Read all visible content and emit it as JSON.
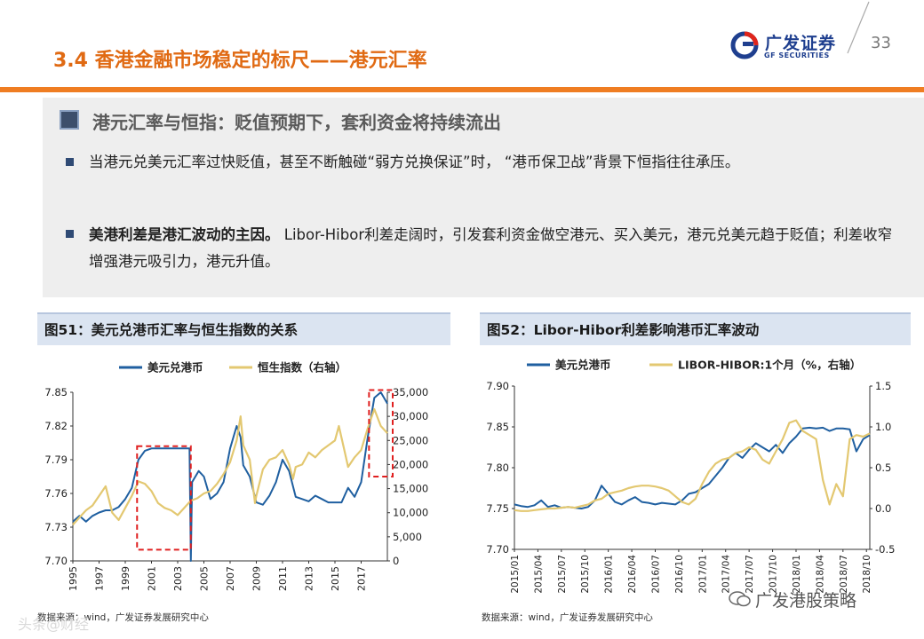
{
  "header": {
    "title": "3.4 香港金融市场稳定的标尺——港元汇率",
    "logo_main": "广发证券",
    "logo_sub": "GF SECURITIES",
    "page_number": "33"
  },
  "colors": {
    "accent_orange": "#ef7d22",
    "navy": "#1f5fa0",
    "gold": "#e3c871",
    "red_dash": "#e02020"
  },
  "section": {
    "subtitle": "港元汇率与恒指：贬值预期下，套利资金将持续流出",
    "bullets": [
      {
        "lead": "",
        "text": "当港元兑美元汇率过快贬值，甚至不断触碰“弱方兑换保证”时， “港币保卫战”背景下恒指往往承压。"
      },
      {
        "lead": "美港利差是港汇波动的主因。",
        "text": " Libor-Hibor利差走阔时，引发套利资金做空港元、买入美元，港元兑美元趋于贬值；利差收窄增强港元吸引力，港元升值。"
      }
    ]
  },
  "figures": {
    "fig51": {
      "title": "图51：美元兑港币汇率与恒生指数的关系",
      "source": "数据来源：wind，广发证券发展研究中心"
    },
    "fig52": {
      "title": "图52：Libor-Hibor利差影响港币汇率波动",
      "source": "数据来源：wind，广发证券发展研究中心"
    }
  },
  "watermark": "广发港股策略",
  "watermark2": "头条@财经",
  "chart_data": [
    {
      "type": "line",
      "title": "图51：美元兑港币汇率与恒生指数的关系",
      "x": [
        "1995",
        "1997",
        "1999",
        "2001",
        "2003",
        "2005",
        "2007",
        "2009",
        "2011",
        "2013",
        "2015",
        "2017"
      ],
      "xlim": [
        1995,
        2019
      ],
      "ylim": [
        7.7,
        7.85
      ],
      "yticks": [
        7.7,
        7.73,
        7.76,
        7.79,
        7.82,
        7.85
      ],
      "y2lim": [
        0,
        35000
      ],
      "y2ticks": [
        0,
        5000,
        10000,
        15000,
        20000,
        25000,
        30000,
        35000
      ],
      "ytick_labels": [
        "7.70",
        "7.73",
        "7.76",
        "7.79",
        "7.82",
        "7.85"
      ],
      "y2tick_labels": [
        "0",
        "5,000",
        "10,000",
        "15,000",
        "20,000",
        "25,000",
        "30,000",
        "35,000"
      ],
      "series": [
        {
          "name": "美元兑港币",
          "axis": "left",
          "color": "#1f5fa0",
          "points": [
            [
              1995,
              7.735
            ],
            [
              1995.5,
              7.74
            ],
            [
              1996,
              7.735
            ],
            [
              1996.5,
              7.74
            ],
            [
              1997,
              7.743
            ],
            [
              1997.5,
              7.745
            ],
            [
              1998,
              7.745
            ],
            [
              1998.5,
              7.748
            ],
            [
              1999,
              7.755
            ],
            [
              1999.5,
              7.765
            ],
            [
              2000,
              7.79
            ],
            [
              2000.5,
              7.798
            ],
            [
              2001,
              7.8
            ],
            [
              2002,
              7.8
            ],
            [
              2003,
              7.8
            ],
            [
              2003.9,
              7.8
            ],
            [
              2004,
              7.7
            ],
            [
              2004.1,
              7.77
            ],
            [
              2004.6,
              7.78
            ],
            [
              2005,
              7.775
            ],
            [
              2005.5,
              7.755
            ],
            [
              2006,
              7.76
            ],
            [
              2006.5,
              7.77
            ],
            [
              2007,
              7.8
            ],
            [
              2007.5,
              7.82
            ],
            [
              2007.8,
              7.81
            ],
            [
              2008,
              7.785
            ],
            [
              2008.5,
              7.775
            ],
            [
              2009,
              7.752
            ],
            [
              2009.5,
              7.75
            ],
            [
              2010,
              7.758
            ],
            [
              2010.5,
              7.77
            ],
            [
              2011,
              7.79
            ],
            [
              2011.5,
              7.78
            ],
            [
              2012,
              7.757
            ],
            [
              2012.5,
              7.755
            ],
            [
              2013,
              7.753
            ],
            [
              2013.5,
              7.758
            ],
            [
              2014,
              7.755
            ],
            [
              2014.5,
              7.752
            ],
            [
              2015,
              7.752
            ],
            [
              2015.5,
              7.752
            ],
            [
              2016,
              7.765
            ],
            [
              2016.5,
              7.757
            ],
            [
              2017,
              7.77
            ],
            [
              2017.5,
              7.81
            ],
            [
              2018,
              7.845
            ],
            [
              2018.5,
              7.85
            ],
            [
              2019,
              7.84
            ]
          ]
        },
        {
          "name": "恒生指数（右轴）",
          "axis": "right",
          "color": "#e3c871",
          "points": [
            [
              1995,
              7500
            ],
            [
              1995.5,
              9000
            ],
            [
              1996,
              10500
            ],
            [
              1996.5,
              11500
            ],
            [
              1997,
              13500
            ],
            [
              1997.5,
              15500
            ],
            [
              1998,
              10000
            ],
            [
              1998.5,
              8500
            ],
            [
              1999,
              11000
            ],
            [
              1999.5,
              13500
            ],
            [
              2000,
              16500
            ],
            [
              2000.5,
              16000
            ],
            [
              2001,
              14500
            ],
            [
              2001.5,
              12000
            ],
            [
              2002,
              11000
            ],
            [
              2002.5,
              10500
            ],
            [
              2003,
              9500
            ],
            [
              2003.5,
              11000
            ],
            [
              2004,
              12500
            ],
            [
              2004.5,
              13000
            ],
            [
              2005,
              14000
            ],
            [
              2005.5,
              14500
            ],
            [
              2006,
              16000
            ],
            [
              2006.5,
              18000
            ],
            [
              2007,
              20500
            ],
            [
              2007.5,
              25000
            ],
            [
              2007.8,
              30000
            ],
            [
              2008,
              24000
            ],
            [
              2008.5,
              21000
            ],
            [
              2008.9,
              12000
            ],
            [
              2009,
              13500
            ],
            [
              2009.5,
              19000
            ],
            [
              2010,
              21000
            ],
            [
              2010.5,
              21500
            ],
            [
              2011,
              23000
            ],
            [
              2011.5,
              20000
            ],
            [
              2011.8,
              17000
            ],
            [
              2012,
              19500
            ],
            [
              2012.5,
              20000
            ],
            [
              2013,
              22500
            ],
            [
              2013.5,
              21500
            ],
            [
              2014,
              23000
            ],
            [
              2014.5,
              24000
            ],
            [
              2015,
              25000
            ],
            [
              2015.3,
              28000
            ],
            [
              2015.8,
              22000
            ],
            [
              2016,
              19500
            ],
            [
              2016.5,
              21500
            ],
            [
              2017,
              23000
            ],
            [
              2017.5,
              27500
            ],
            [
              2018,
              31500
            ],
            [
              2018.5,
              28000
            ],
            [
              2019,
              26500
            ]
          ]
        }
      ],
      "annotations": [
        "dashed box 1999.9–2004.0",
        "dashed box 2017.6–2019"
      ]
    },
    {
      "type": "line",
      "title": "图52：Libor-Hibor利差影响港币汇率波动",
      "x": [
        "2015/01",
        "2015/04",
        "2015/07",
        "2015/10",
        "2016/01",
        "2016/04",
        "2016/07",
        "2016/10",
        "2017/01",
        "2017/04",
        "2017/07",
        "2017/10",
        "2018/01",
        "2018/04",
        "2018/07",
        "2018/10"
      ],
      "ylim": [
        7.7,
        7.9
      ],
      "yticks": [
        7.7,
        7.75,
        7.8,
        7.85,
        7.9
      ],
      "y2lim": [
        -0.5,
        1.5
      ],
      "y2ticks": [
        -0.5,
        0.0,
        0.5,
        1.0,
        1.5
      ],
      "ytick_labels": [
        "7.70",
        "7.75",
        "7.80",
        "7.85",
        "7.90"
      ],
      "y2tick_labels": [
        "-0.5",
        "0.0",
        "0.5",
        "1.0",
        "1.5"
      ],
      "series": [
        {
          "name": "美元兑港币",
          "axis": "left",
          "color": "#1f5fa0",
          "points": [
            [
              0,
              7.755
            ],
            [
              1,
              7.753
            ],
            [
              2,
              7.752
            ],
            [
              3,
              7.754
            ],
            [
              4,
              7.76
            ],
            [
              5,
              7.752
            ],
            [
              6,
              7.754
            ],
            [
              7,
              7.751
            ],
            [
              8,
              7.752
            ],
            [
              9,
              7.751
            ],
            [
              10,
              7.75
            ],
            [
              11,
              7.752
            ],
            [
              12,
              7.76
            ],
            [
              13,
              7.778
            ],
            [
              14,
              7.768
            ],
            [
              15,
              7.758
            ],
            [
              16,
              7.755
            ],
            [
              17,
              7.76
            ],
            [
              18,
              7.764
            ],
            [
              19,
              7.758
            ],
            [
              20,
              7.757
            ],
            [
              21,
              7.755
            ],
            [
              22,
              7.757
            ],
            [
              23,
              7.756
            ],
            [
              24,
              7.755
            ],
            [
              25,
              7.76
            ],
            [
              26,
              7.768
            ],
            [
              27,
              7.77
            ],
            [
              28,
              7.775
            ],
            [
              29,
              7.78
            ],
            [
              30,
              7.79
            ],
            [
              31,
              7.8
            ],
            [
              32,
              7.812
            ],
            [
              33,
              7.818
            ],
            [
              34,
              7.812
            ],
            [
              35,
              7.822
            ],
            [
              36,
              7.83
            ],
            [
              37,
              7.825
            ],
            [
              38,
              7.82
            ],
            [
              39,
              7.828
            ],
            [
              40,
              7.818
            ],
            [
              41,
              7.83
            ],
            [
              42,
              7.838
            ],
            [
              43,
              7.848
            ],
            [
              44,
              7.849
            ],
            [
              45,
              7.848
            ],
            [
              46,
              7.849
            ],
            [
              47,
              7.845
            ],
            [
              48,
              7.848
            ],
            [
              49,
              7.848
            ],
            [
              50,
              7.847
            ],
            [
              51,
              7.82
            ],
            [
              52,
              7.835
            ],
            [
              53,
              7.84
            ]
          ]
        },
        {
          "name": "LIBOR-HIBOR:1个月（%，右轴）",
          "axis": "right",
          "color": "#e3c871",
          "points": [
            [
              0,
              -0.02
            ],
            [
              1,
              -0.03
            ],
            [
              2,
              -0.03
            ],
            [
              3,
              -0.02
            ],
            [
              4,
              -0.01
            ],
            [
              5,
              0.0
            ],
            [
              6,
              0.0
            ],
            [
              7,
              0.01
            ],
            [
              8,
              0.02
            ],
            [
              9,
              0.01
            ],
            [
              10,
              0.03
            ],
            [
              11,
              0.05
            ],
            [
              12,
              0.1
            ],
            [
              13,
              0.12
            ],
            [
              14,
              0.18
            ],
            [
              15,
              0.2
            ],
            [
              16,
              0.22
            ],
            [
              17,
              0.25
            ],
            [
              18,
              0.27
            ],
            [
              19,
              0.28
            ],
            [
              20,
              0.28
            ],
            [
              21,
              0.27
            ],
            [
              22,
              0.25
            ],
            [
              23,
              0.22
            ],
            [
              24,
              0.15
            ],
            [
              25,
              0.08
            ],
            [
              26,
              0.05
            ],
            [
              27,
              0.12
            ],
            [
              28,
              0.3
            ],
            [
              29,
              0.45
            ],
            [
              30,
              0.55
            ],
            [
              31,
              0.6
            ],
            [
              32,
              0.62
            ],
            [
              33,
              0.68
            ],
            [
              34,
              0.7
            ],
            [
              35,
              0.75
            ],
            [
              36,
              0.72
            ],
            [
              37,
              0.6
            ],
            [
              38,
              0.55
            ],
            [
              39,
              0.7
            ],
            [
              40,
              0.85
            ],
            [
              41,
              1.05
            ],
            [
              42,
              1.08
            ],
            [
              43,
              0.95
            ],
            [
              44,
              0.9
            ],
            [
              45,
              0.85
            ],
            [
              46,
              0.35
            ],
            [
              47,
              0.05
            ],
            [
              48,
              0.3
            ],
            [
              49,
              0.15
            ],
            [
              50,
              0.85
            ],
            [
              51,
              0.9
            ],
            [
              52,
              0.88
            ],
            [
              53,
              0.92
            ]
          ]
        }
      ]
    }
  ]
}
